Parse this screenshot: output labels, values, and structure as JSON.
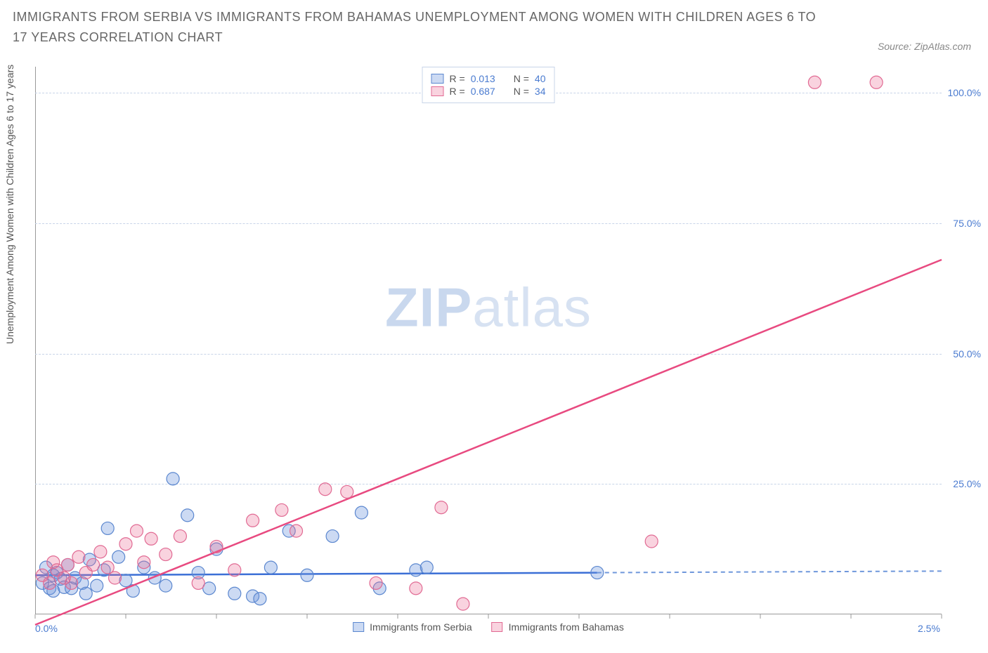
{
  "title": "IMMIGRANTS FROM SERBIA VS IMMIGRANTS FROM BAHAMAS UNEMPLOYMENT AMONG WOMEN WITH CHILDREN AGES 6 TO 17 YEARS CORRELATION CHART",
  "source": "Source: ZipAtlas.com",
  "y_axis_label": "Unemployment Among Women with Children Ages 6 to 17 years",
  "watermark_bold": "ZIP",
  "watermark_light": "atlas",
  "chart": {
    "type": "scatter",
    "x_range": [
      0.0,
      2.5
    ],
    "y_range": [
      0.0,
      105.0
    ],
    "x_ticks": [
      {
        "v": 0.0,
        "label": "0.0%"
      },
      {
        "v": 2.5,
        "label": "2.5%"
      }
    ],
    "y_ticks": [
      {
        "v": 25.0,
        "label": "25.0%"
      },
      {
        "v": 50.0,
        "label": "50.0%"
      },
      {
        "v": 75.0,
        "label": "75.0%"
      },
      {
        "v": 100.0,
        "label": "100.0%"
      }
    ],
    "grid_color": "#c8d4e8",
    "background": "#ffffff",
    "marker_radius": 9,
    "series": [
      {
        "name": "Immigrants from Serbia",
        "color_fill": "rgba(108,150,220,0.35)",
        "color_stroke": "#5b87cf",
        "trend_color": "#3b6fd6",
        "trend_dash_color": "#6f97db",
        "R": "0.013",
        "N": "40",
        "trend": {
          "x1": 0.0,
          "y1": 7.5,
          "x2": 1.55,
          "y2": 8.0
        },
        "trend_dash": {
          "x1": 1.55,
          "y1": 8.0,
          "x2": 2.5,
          "y2": 8.3
        },
        "points": [
          [
            0.02,
            6.0
          ],
          [
            0.03,
            9.0
          ],
          [
            0.04,
            5.0
          ],
          [
            0.05,
            7.5
          ],
          [
            0.05,
            4.5
          ],
          [
            0.06,
            8.0
          ],
          [
            0.07,
            6.8
          ],
          [
            0.08,
            5.2
          ],
          [
            0.09,
            9.5
          ],
          [
            0.1,
            5.0
          ],
          [
            0.11,
            7.0
          ],
          [
            0.13,
            6.0
          ],
          [
            0.14,
            4.0
          ],
          [
            0.15,
            10.5
          ],
          [
            0.17,
            5.5
          ],
          [
            0.19,
            8.5
          ],
          [
            0.2,
            16.5
          ],
          [
            0.23,
            11.0
          ],
          [
            0.25,
            6.5
          ],
          [
            0.27,
            4.5
          ],
          [
            0.3,
            9.0
          ],
          [
            0.33,
            7.0
          ],
          [
            0.36,
            5.5
          ],
          [
            0.38,
            26.0
          ],
          [
            0.42,
            19.0
          ],
          [
            0.45,
            8.0
          ],
          [
            0.48,
            5.0
          ],
          [
            0.5,
            12.5
          ],
          [
            0.55,
            4.0
          ],
          [
            0.6,
            3.5
          ],
          [
            0.62,
            3.0
          ],
          [
            0.65,
            9.0
          ],
          [
            0.7,
            16.0
          ],
          [
            0.75,
            7.5
          ],
          [
            0.82,
            15.0
          ],
          [
            0.9,
            19.5
          ],
          [
            0.95,
            5.0
          ],
          [
            1.05,
            8.5
          ],
          [
            1.08,
            9.0
          ],
          [
            1.55,
            8.0
          ]
        ]
      },
      {
        "name": "Immigrants from Bahamas",
        "color_fill": "rgba(235,110,150,0.30)",
        "color_stroke": "#e16a93",
        "trend_color": "#e84a80",
        "R": "0.687",
        "N": "34",
        "trend": {
          "x1": 0.0,
          "y1": -2.0,
          "x2": 2.5,
          "y2": 68.0
        },
        "points": [
          [
            0.02,
            7.5
          ],
          [
            0.04,
            6.0
          ],
          [
            0.05,
            10.0
          ],
          [
            0.06,
            8.5
          ],
          [
            0.08,
            7.0
          ],
          [
            0.09,
            9.5
          ],
          [
            0.1,
            6.0
          ],
          [
            0.12,
            11.0
          ],
          [
            0.14,
            8.0
          ],
          [
            0.16,
            9.5
          ],
          [
            0.18,
            12.0
          ],
          [
            0.2,
            9.0
          ],
          [
            0.22,
            7.0
          ],
          [
            0.25,
            13.5
          ],
          [
            0.28,
            16.0
          ],
          [
            0.3,
            10.0
          ],
          [
            0.32,
            14.5
          ],
          [
            0.36,
            11.5
          ],
          [
            0.4,
            15.0
          ],
          [
            0.45,
            6.0
          ],
          [
            0.5,
            13.0
          ],
          [
            0.55,
            8.5
          ],
          [
            0.6,
            18.0
          ],
          [
            0.68,
            20.0
          ],
          [
            0.72,
            16.0
          ],
          [
            0.8,
            24.0
          ],
          [
            0.86,
            23.5
          ],
          [
            0.94,
            6.0
          ],
          [
            1.05,
            5.0
          ],
          [
            1.12,
            20.5
          ],
          [
            1.18,
            2.0
          ],
          [
            1.7,
            14.0
          ],
          [
            2.15,
            102.0
          ],
          [
            2.32,
            102.0
          ]
        ]
      }
    ],
    "legend_top": {
      "r_label": "R =",
      "n_label": "N ="
    },
    "legend_bottom": [
      "Immigrants from Serbia",
      "Immigrants from Bahamas"
    ]
  }
}
